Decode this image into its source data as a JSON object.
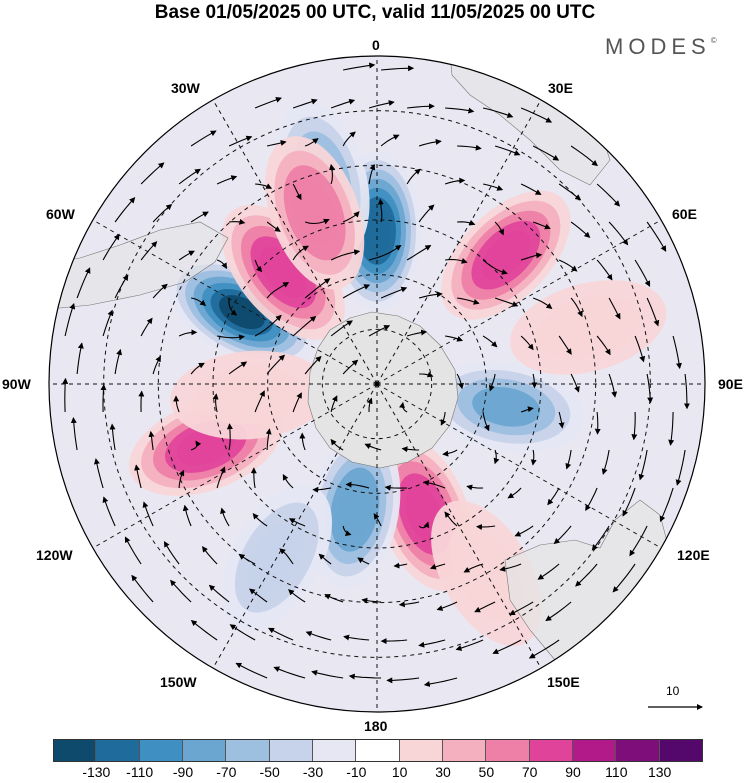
{
  "title": "Base 01/05/2025 00 UTC, valid 11/05/2025 00 UTC",
  "brand": "MODES",
  "brand_mark": "©",
  "longitude_labels": {
    "lon_0": "0",
    "lon_30e": "30E",
    "lon_60e": "60E",
    "lon_90e": "90E",
    "lon_120e": "120E",
    "lon_150e": "150E",
    "lon_180": "180",
    "lon_150w": "150W",
    "lon_120w": "120W",
    "lon_90w": "90W",
    "lon_60w": "60W",
    "lon_30w": "30W"
  },
  "reference_vector": {
    "label": "10"
  },
  "colorbar": {
    "ticks": [
      "-130",
      "-110",
      "-90",
      "-70",
      "-50",
      "-30",
      "-10",
      "10",
      "30",
      "50",
      "70",
      "90",
      "110",
      "130"
    ],
    "colors": [
      "#0e4a6b",
      "#1f6b9c",
      "#3f8fc2",
      "#6ba6d1",
      "#9dbfe0",
      "#c7d3ea",
      "#e6e7f3",
      "#ffffff",
      "#f8d6d8",
      "#f4b0bf",
      "#ee7fa6",
      "#e0449a",
      "#b21a8a",
      "#7d0e7a",
      "#54086b"
    ]
  },
  "anomaly_blobs": [
    {
      "lon": 0,
      "lat": -48,
      "value": -120
    },
    {
      "lon": -62,
      "lat": -48,
      "value": -130
    },
    {
      "lon": -15,
      "lat": -32,
      "value": -60
    },
    {
      "lon": 45,
      "lat": -40,
      "value": 90
    },
    {
      "lon": -40,
      "lat": -50,
      "value": 80
    },
    {
      "lon": -20,
      "lat": -40,
      "value": 70
    },
    {
      "lon": 100,
      "lat": -54,
      "value": -70
    },
    {
      "lon": 160,
      "lat": -52,
      "value": 85
    },
    {
      "lon": -170,
      "lat": -55,
      "value": -80
    },
    {
      "lon": -110,
      "lat": -40,
      "value": 90
    },
    {
      "lon": -150,
      "lat": -35,
      "value": -40
    },
    {
      "lon": 150,
      "lat": -30,
      "value": 30
    },
    {
      "lon": 75,
      "lat": -30,
      "value": 30
    },
    {
      "lon": -95,
      "lat": -55,
      "value": 20
    }
  ]
}
